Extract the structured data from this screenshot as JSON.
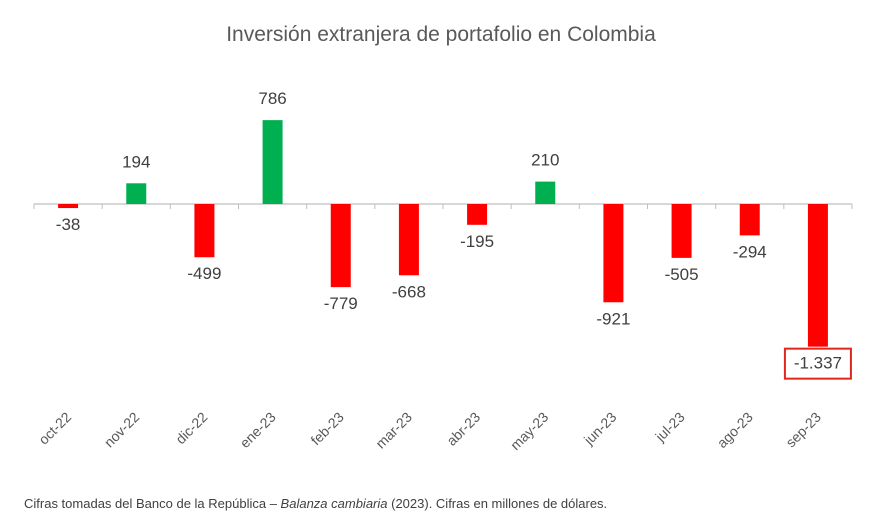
{
  "chart_data": {
    "type": "bar",
    "title": "Inversión extranjera de portafolio en Colombia",
    "categories": [
      "oct-22",
      "nov-22",
      "dic-22",
      "ene-23",
      "feb-23",
      "mar-23",
      "abr-23",
      "may-23",
      "jun-23",
      "jul-23",
      "ago-23",
      "sep-23"
    ],
    "values": [
      -38,
      194,
      -499,
      786,
      -779,
      -668,
      -195,
      210,
      -921,
      -505,
      -294,
      -1337
    ],
    "value_labels": [
      "-38",
      "194",
      "-499",
      "786",
      "-779",
      "-668",
      "-195",
      "210",
      "-921",
      "-505",
      "-294",
      "-1.337"
    ],
    "highlighted_label": "-1.337",
    "xlabel": "",
    "ylabel": "",
    "ylim": [
      -1400,
      900
    ],
    "grid": false,
    "legend": "none"
  },
  "colors": {
    "positive": "#00b050",
    "negative": "#ff0000",
    "highlight_box": "#e0261d",
    "axis": "#bfbfbf"
  },
  "caption": {
    "prefix": "Cifras tomadas del Banco de la República – ",
    "source_title": "Balanza cambiaria",
    "suffix": " (2023). Cifras en millones de dólares."
  }
}
